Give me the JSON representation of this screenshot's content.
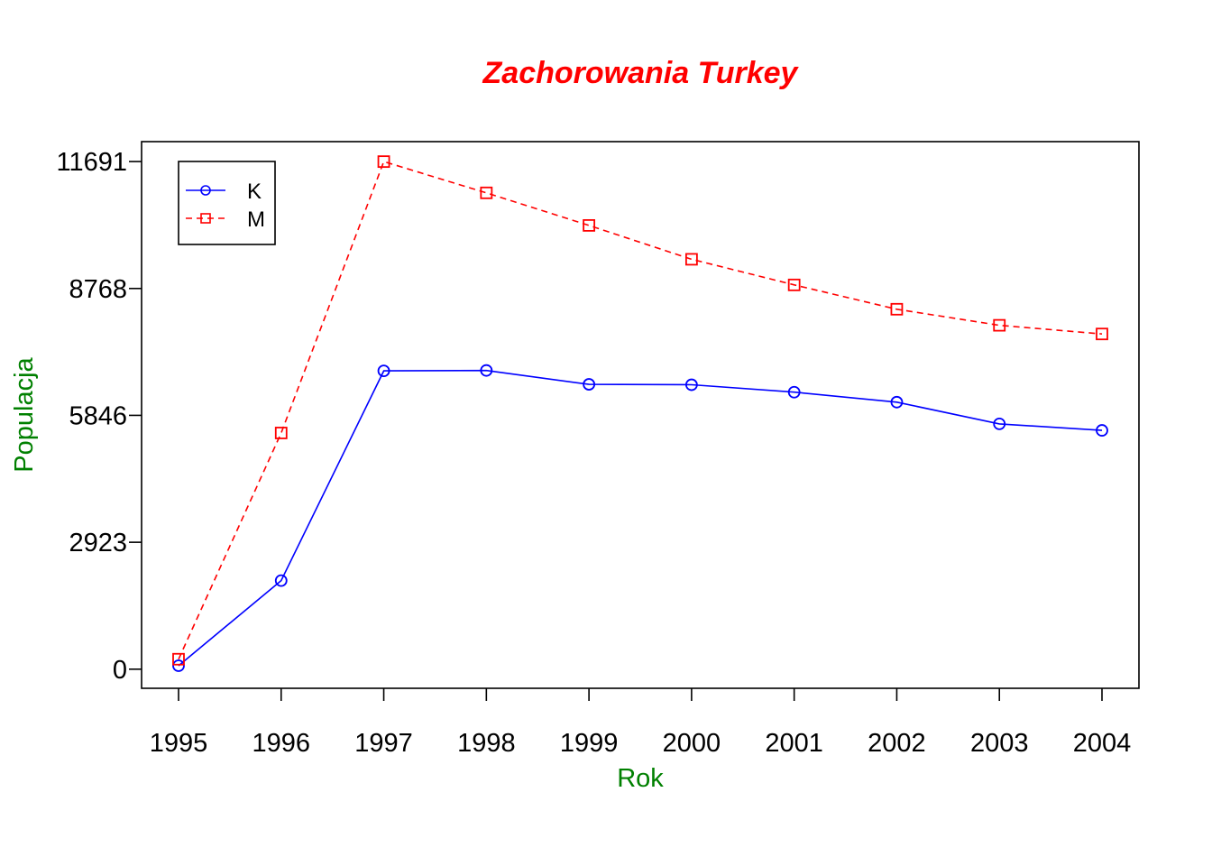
{
  "chart_data": {
    "type": "line",
    "title": "Zachorowania Turkey",
    "xlabel": "Rok",
    "ylabel": "Populacja",
    "x": [
      1995,
      1996,
      1997,
      1998,
      1999,
      2000,
      2001,
      2002,
      2003,
      2004
    ],
    "x_ticks": [
      "1995",
      "1996",
      "1997",
      "1998",
      "1999",
      "2000",
      "2001",
      "2002",
      "2003",
      "2004"
    ],
    "y_ticks": [
      "0",
      "2923",
      "5846",
      "8768",
      "11691"
    ],
    "ylim": [
      -440,
      12150
    ],
    "grid": false,
    "legend_position": "top-left",
    "series": [
      {
        "name": "K",
        "color": "#0000ff",
        "line_style": "solid",
        "marker": "circle",
        "values": [
          80,
          2040,
          6870,
          6880,
          6560,
          6550,
          6380,
          6150,
          5650,
          5500
        ]
      },
      {
        "name": "M",
        "color": "#ff0000",
        "line_style": "dashed",
        "marker": "square",
        "values": [
          230,
          5440,
          11690,
          10970,
          10220,
          9440,
          8850,
          8290,
          7920,
          7720
        ]
      }
    ],
    "colors": {
      "title": "#ff0000",
      "axis_labels": "#008000",
      "frame": "#000000"
    }
  }
}
